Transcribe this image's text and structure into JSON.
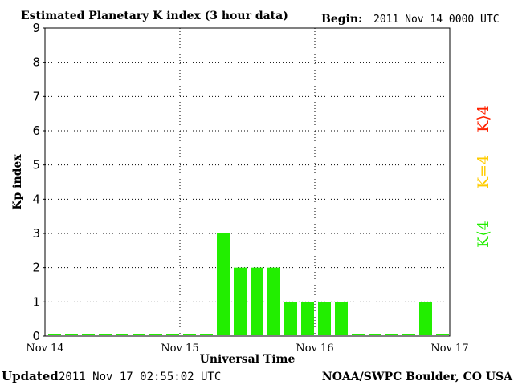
{
  "chart_data": {
    "type": "bar",
    "title": "Estimated Planetary K index (3 hour data)",
    "begin_label": "Begin:",
    "begin_value": "2011 Nov 14 0000 UTC",
    "xlabel": "Universal Time",
    "ylabel": "Kp index",
    "ylim": [
      0,
      9
    ],
    "y_ticks": [
      "0",
      "1",
      "2",
      "3",
      "4",
      "5",
      "6",
      "7",
      "8",
      "9"
    ],
    "x_ticks": [
      "Nov 14",
      "Nov 15",
      "Nov 16",
      "Nov 17"
    ],
    "grid": "dotted",
    "bar_color": "#22ee00",
    "values": [
      0,
      0,
      0,
      0,
      0,
      0,
      0,
      0,
      0,
      0,
      3,
      2,
      2,
      2,
      1,
      1,
      1,
      1,
      0,
      0,
      0,
      0,
      1,
      0
    ],
    "legend": [
      {
        "label": "K⟨4",
        "color": "#22ee00"
      },
      {
        "label": "K=4",
        "color": "#ffcc00"
      },
      {
        "label": "K⟩4",
        "color": "#ff2200"
      }
    ]
  },
  "footer": {
    "updated_label": "Updated",
    "updated_value": "2011 Nov 17 02:55:02 UTC",
    "source": "NOAA/SWPC Boulder, CO USA"
  }
}
